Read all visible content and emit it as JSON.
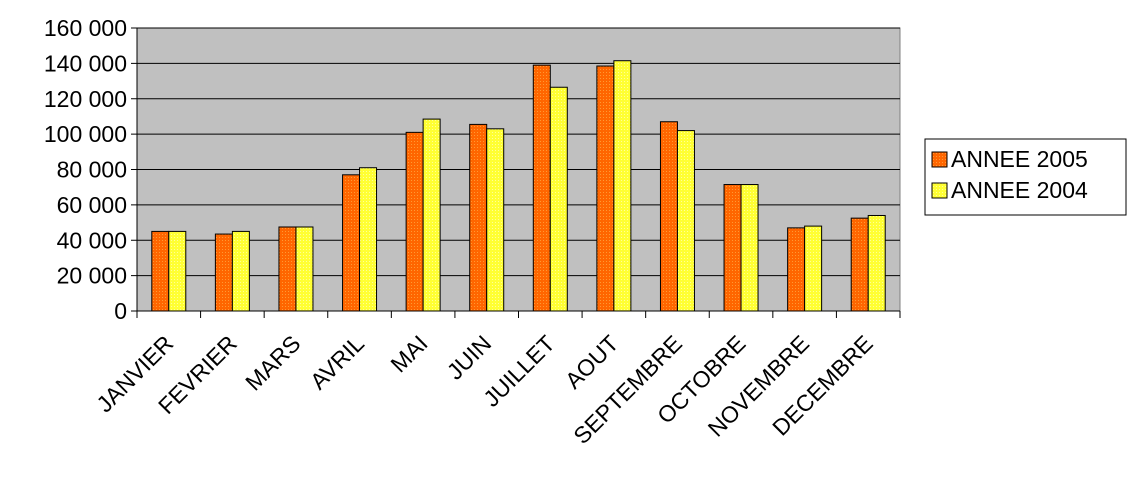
{
  "chart_data": {
    "type": "bar",
    "categories": [
      "JANVIER",
      "FEVRIER",
      "MARS",
      "AVRIL",
      "MAI",
      "JUIN",
      "JUILLET",
      "AOUT",
      "SEPTEMBRE",
      "OCTOBRE",
      "NOVEMBRE",
      "DECEMBRE"
    ],
    "series": [
      {
        "name": "ANNEE 2005",
        "color": "#FF6600",
        "values": [
          45000,
          43500,
          47500,
          77000,
          101000,
          105500,
          139000,
          138500,
          107000,
          71500,
          47000,
          52500
        ]
      },
      {
        "name": "ANNEE 2004",
        "color": "#FFFF33",
        "values": [
          45000,
          45000,
          47500,
          81000,
          108500,
          103000,
          126500,
          141500,
          102000,
          71500,
          48000,
          54000
        ]
      }
    ],
    "y_ticks": [
      "0",
      "20 000",
      "40 000",
      "60 000",
      "80 000",
      "100 000",
      "120 000",
      "140 000",
      "160 000"
    ],
    "ylim": [
      0,
      160000
    ],
    "grid": true,
    "plot_background": "#C0C0C0",
    "legend_position": "right",
    "title": "",
    "xlabel": "",
    "ylabel": ""
  }
}
